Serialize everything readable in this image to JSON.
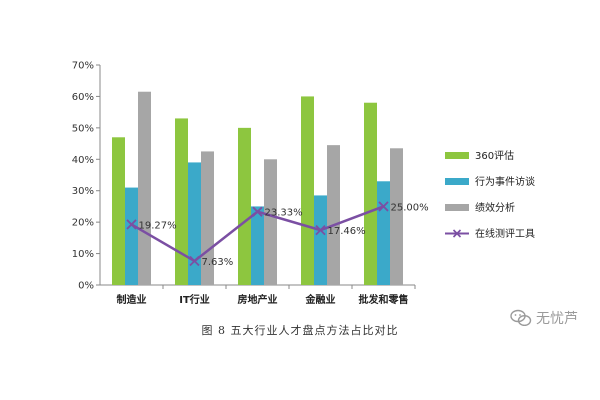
{
  "chart_data": {
    "type": "bar",
    "categories": [
      "制造业",
      "IT行业",
      "房地产业",
      "金融业",
      "批发和零售"
    ],
    "series": [
      {
        "name": "360评估",
        "type": "bar",
        "color": "#8dc63f",
        "values": [
          47,
          53,
          50,
          60,
          58
        ]
      },
      {
        "name": "行为事件访谈",
        "type": "bar",
        "color": "#3ba9c9",
        "values": [
          31,
          39,
          25,
          28.5,
          33
        ]
      },
      {
        "name": "绩效分析",
        "type": "bar",
        "color": "#a6a6a6",
        "values": [
          61.5,
          42.5,
          40,
          44.5,
          43.5
        ]
      },
      {
        "name": "在线测评工具",
        "type": "line",
        "color": "#7b4fa3",
        "values": [
          19.27,
          7.63,
          23.33,
          17.46,
          25.0
        ],
        "labels": [
          "19.27%",
          "7.63%",
          "23.33%",
          "17.46%",
          "25.00%"
        ]
      }
    ],
    "y_ticks": [
      "0%",
      "10%",
      "20%",
      "30%",
      "40%",
      "50%",
      "60%",
      "70%"
    ],
    "ylim": [
      0,
      70
    ],
    "grid": false,
    "legend_position": "right"
  },
  "caption": "图 8  五大行业人才盘点方法占比对比",
  "watermark": {
    "text": "无忧芦",
    "icon": "wechat-icon"
  }
}
